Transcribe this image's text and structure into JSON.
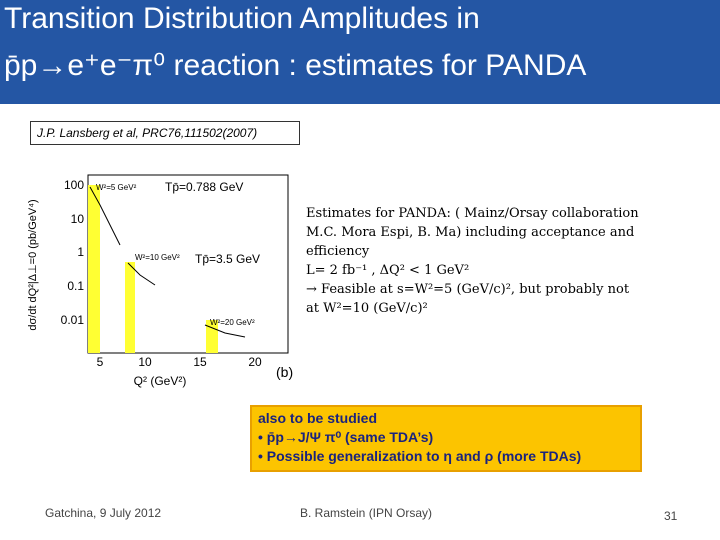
{
  "header": {
    "title_line1": "Transition Distribution Amplitudes in",
    "title_line2": "p̄p→e⁺e⁻π⁰ reaction : estimates for PANDA"
  },
  "citation": "J.P. Lansberg et al, PRC76,111502(2007)",
  "figure": {
    "y_axis_label": "dσ/dt dQ²|Δ⊥=0 (pb/GeV⁴)",
    "x_axis_label": "Q² (GeV²)",
    "panel": "(b)",
    "yticks": [
      "100",
      "10",
      "1",
      "0.1",
      "0.01"
    ],
    "xticks": [
      "5",
      "10",
      "15",
      "20"
    ],
    "annotations": [
      "W²=5 GeV²",
      "W²=10 GeV²",
      "W²=20 GeV²",
      "Tp̄=0.788 GeV",
      "Tp̄=3.5 GeV"
    ]
  },
  "estimates": [
    "Estimates for PANDA: ( Mainz/Orsay collaboration",
    "M.C. Mora Espi, B. Ma)  including acceptance and",
    "efficiency",
    "L= 2 fb⁻¹ ,  ΔQ² < 1 GeV²",
    "→ Feasible at s=W²=5 (GeV/c)², but probably not",
    "at W²=10 (GeV/c)²"
  ],
  "box": [
    "also to be studied",
    "•  p̄p→J/Ψ π⁰ (same TDA’s)",
    "•  Possible generalization to η and ρ (more TDAs)"
  ],
  "footer": {
    "left": "Gatchina, 9 July 2012",
    "center": "B. Ramstein (IPN Orsay)",
    "page": "31"
  }
}
